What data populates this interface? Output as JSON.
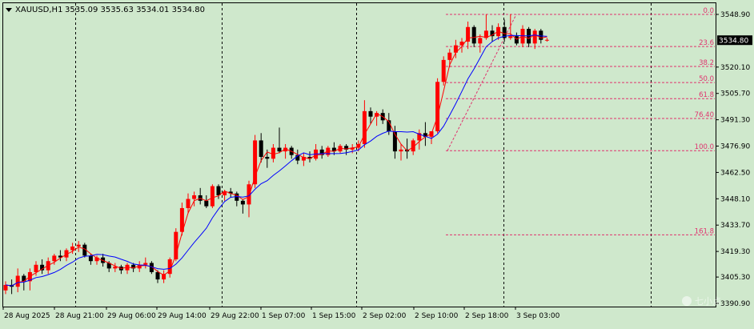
{
  "header": {
    "symbol": "XAUUSD,H1",
    "ohlc": "3535.09 3535.63 3534.01 3534.80"
  },
  "watermark": "七小点",
  "colors": {
    "background": "#cfe8cc",
    "bull": "#ff0000",
    "bear": "#000000",
    "ma_fast": "#ff0000",
    "ma_slow": "#0000ff",
    "fib": "#e0326e",
    "price_tag": "#000000"
  },
  "chart_data": {
    "type": "candlestick",
    "symbol": "XAUUSD",
    "timeframe": "H1",
    "ylim": [
      3390.0,
      3558.0
    ],
    "current_price": "3534.80",
    "current_price_value": 3534.8,
    "y_ticks": [
      "3548.90",
      "3534.80",
      "3520.10",
      "3505.70",
      "3491.30",
      "3476.90",
      "3462.50",
      "3448.10",
      "3433.70",
      "3419.30",
      "3405.30",
      "3390.90"
    ],
    "x_ticks": [
      "28 Aug 2025",
      "28 Aug 21:00",
      "29 Aug 06:00",
      "29 Aug 14:00",
      "29 Aug 22:00",
      "1 Sep 07:00",
      "1 Sep 15:00",
      "2 Sep 02:00",
      "2 Sep 10:00",
      "2 Sep 18:00",
      "3 Sep 03:00"
    ],
    "fibonacci": {
      "high": 3548.9,
      "low": 3474.4,
      "levels": [
        {
          "label": "0.0",
          "ratio": 0.0
        },
        {
          "label": "23.6",
          "ratio": 0.236
        },
        {
          "label": "38.2",
          "ratio": 0.382
        },
        {
          "label": "50.0",
          "ratio": 0.5
        },
        {
          "label": "61.8",
          "ratio": 0.618
        },
        {
          "label": "76.40",
          "ratio": 0.764
        },
        {
          "label": "100.0",
          "ratio": 1.0
        },
        {
          "label": "161.8",
          "ratio": 1.618
        }
      ]
    },
    "candles": [
      [
        3398,
        3403,
        3396,
        3401
      ],
      [
        3401,
        3404,
        3396,
        3400
      ],
      [
        3400,
        3410,
        3397,
        3406
      ],
      [
        3406,
        3407,
        3398,
        3403
      ],
      [
        3403,
        3410,
        3398,
        3408
      ],
      [
        3408,
        3414,
        3406,
        3412
      ],
      [
        3412,
        3415,
        3407,
        3409
      ],
      [
        3409,
        3416,
        3407,
        3414
      ],
      [
        3414,
        3418,
        3412,
        3417
      ],
      [
        3417,
        3420,
        3414,
        3416
      ],
      [
        3416,
        3421,
        3414,
        3420
      ],
      [
        3420,
        3424,
        3418,
        3422
      ],
      [
        3422,
        3425,
        3419,
        3423
      ],
      [
        3423,
        3424,
        3416,
        3417
      ],
      [
        3417,
        3418,
        3412,
        3414
      ],
      [
        3414,
        3417,
        3412,
        3416
      ],
      [
        3416,
        3418,
        3411,
        3413
      ],
      [
        3413,
        3414,
        3408,
        3410
      ],
      [
        3410,
        3413,
        3408,
        3411
      ],
      [
        3411,
        3412,
        3407,
        3409
      ],
      [
        3409,
        3413,
        3407,
        3412
      ],
      [
        3412,
        3413,
        3408,
        3410
      ],
      [
        3410,
        3414,
        3408,
        3412
      ],
      [
        3412,
        3416,
        3410,
        3413
      ],
      [
        3413,
        3414,
        3407,
        3408
      ],
      [
        3408,
        3409,
        3402,
        3404
      ],
      [
        3404,
        3409,
        3402,
        3407
      ],
      [
        3407,
        3416,
        3405,
        3415
      ],
      [
        3415,
        3432,
        3414,
        3430
      ],
      [
        3430,
        3446,
        3428,
        3443
      ],
      [
        3443,
        3451,
        3440,
        3448
      ],
      [
        3448,
        3452,
        3444,
        3450
      ],
      [
        3450,
        3454,
        3445,
        3447
      ],
      [
        3447,
        3450,
        3443,
        3444
      ],
      [
        3444,
        3456,
        3443,
        3455
      ],
      [
        3455,
        3456,
        3448,
        3450
      ],
      [
        3450,
        3453,
        3447,
        3452
      ],
      [
        3452,
        3454,
        3449,
        3451
      ],
      [
        3451,
        3452,
        3444,
        3447
      ],
      [
        3447,
        3448,
        3440,
        3445
      ],
      [
        3445,
        3458,
        3438,
        3456
      ],
      [
        3456,
        3483,
        3454,
        3480
      ],
      [
        3480,
        3484,
        3468,
        3471
      ],
      [
        3471,
        3475,
        3465,
        3470
      ],
      [
        3470,
        3478,
        3468,
        3476
      ],
      [
        3476,
        3487,
        3473,
        3474
      ],
      [
        3474,
        3478,
        3470,
        3476
      ],
      [
        3476,
        3477,
        3470,
        3472
      ],
      [
        3472,
        3475,
        3467,
        3469
      ],
      [
        3469,
        3473,
        3466,
        3471
      ],
      [
        3471,
        3474,
        3468,
        3470
      ],
      [
        3470,
        3478,
        3469,
        3475
      ],
      [
        3475,
        3477,
        3470,
        3472
      ],
      [
        3472,
        3477,
        3471,
        3476
      ],
      [
        3476,
        3479,
        3472,
        3474
      ],
      [
        3474,
        3478,
        3473,
        3477
      ],
      [
        3477,
        3478,
        3472,
        3475
      ],
      [
        3475,
        3478,
        3473,
        3476
      ],
      [
        3476,
        3480,
        3474,
        3478
      ],
      [
        3478,
        3502,
        3476,
        3496
      ],
      [
        3496,
        3498,
        3489,
        3493
      ],
      [
        3493,
        3496,
        3488,
        3495
      ],
      [
        3495,
        3497,
        3489,
        3491
      ],
      [
        3491,
        3495,
        3483,
        3485
      ],
      [
        3485,
        3488,
        3470,
        3474
      ],
      [
        3474,
        3478,
        3469,
        3475
      ],
      [
        3475,
        3481,
        3470,
        3474
      ],
      [
        3474,
        3481,
        3472,
        3480
      ],
      [
        3480,
        3486,
        3475,
        3484
      ],
      [
        3484,
        3490,
        3477,
        3482
      ],
      [
        3482,
        3484,
        3478,
        3485
      ],
      [
        3485,
        3514,
        3484,
        3512
      ],
      [
        3512,
        3526,
        3510,
        3524
      ],
      [
        3524,
        3530,
        3520,
        3528
      ],
      [
        3528,
        3535,
        3525,
        3532
      ],
      [
        3532,
        3536,
        3528,
        3534
      ],
      [
        3534,
        3545,
        3530,
        3542
      ],
      [
        3542,
        3543,
        3531,
        3533
      ],
      [
        3533,
        3538,
        3528,
        3536
      ],
      [
        3536,
        3549,
        3535,
        3540
      ],
      [
        3540,
        3543,
        3534,
        3537
      ],
      [
        3537,
        3544,
        3535,
        3542
      ],
      [
        3542,
        3546,
        3534,
        3536
      ],
      [
        3536,
        3549,
        3535,
        3537
      ],
      [
        3537,
        3539,
        3532,
        3533
      ],
      [
        3533,
        3543,
        3531,
        3541
      ],
      [
        3541,
        3542,
        3531,
        3533
      ],
      [
        3533,
        3541,
        3530,
        3540
      ],
      [
        3540,
        3541,
        3533,
        3535
      ],
      [
        3535,
        3536,
        3534,
        3535
      ]
    ]
  }
}
